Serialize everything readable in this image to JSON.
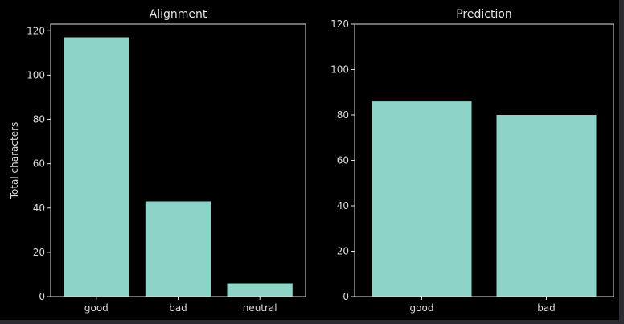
{
  "chart_data": [
    {
      "type": "bar",
      "title": "Alignment",
      "categories": [
        "good",
        "bad",
        "neutral"
      ],
      "values": [
        117,
        43,
        6
      ],
      "xlabel": "",
      "ylabel": "Total characters",
      "ylim": [
        0,
        123
      ],
      "yticks": [
        0,
        20,
        40,
        60,
        80,
        100,
        120
      ],
      "bar_color": "#8dd3c7",
      "grid": false
    },
    {
      "type": "bar",
      "title": "Prediction",
      "categories": [
        "good",
        "bad"
      ],
      "values": [
        86,
        80
      ],
      "xlabel": "",
      "ylabel": "",
      "ylim": [
        0,
        120
      ],
      "yticks": [
        0,
        20,
        40,
        60,
        80,
        100,
        120
      ],
      "bar_color": "#8dd3c7",
      "grid": false
    }
  ],
  "colors": {
    "background": "#000000",
    "outer": "#2b2b30",
    "axis": "#e0e0e0"
  }
}
